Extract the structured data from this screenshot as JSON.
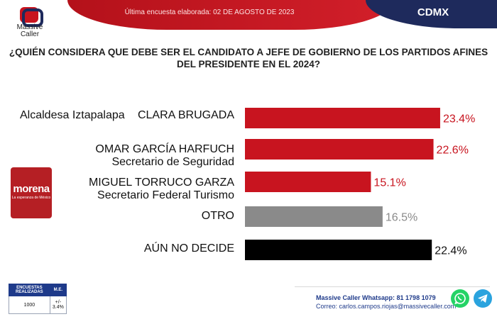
{
  "header": {
    "survey_date": "Última encuesta elaborada: 02 DE AGOSTO DE 2023",
    "region": "CDMX",
    "brand_line1": "Massive",
    "brand_line2": "Caller"
  },
  "question": "¿QUIÉN CONSIDERA QUE DEBE SER EL CANDIDATO A JEFE DE GOBIERNO DE LOS PARTIDOS AFINES DEL PRESIDENTE EN EL 2024?",
  "candidates": [
    {
      "role": "Alcaldesa Iztapalapa",
      "name": "CLARA BRUGADA"
    },
    {
      "name": "OMAR GARCÍA HARFUCH",
      "role": "Secretario de Seguridad"
    },
    {
      "name": "MIGUEL TORRUCO GARZA",
      "role": "Secretario Federal Turismo"
    },
    {
      "name": "OTRO"
    },
    {
      "name": "AÚN NO DECIDE"
    }
  ],
  "party_logo": {
    "name": "morena",
    "tagline": "La esperanza de México"
  },
  "chart_data": {
    "type": "bar",
    "orientation": "horizontal",
    "categories": [
      "CLARA BRUGADA",
      "OMAR GARCÍA HARFUCH",
      "MIGUEL TORRUCO GARZA",
      "OTRO",
      "AÚN NO DECIDE"
    ],
    "values": [
      23.4,
      22.6,
      15.1,
      16.5,
      22.4
    ],
    "value_labels": [
      "23.4%",
      "22.6%",
      "15.1%",
      "16.5%",
      "22.4%"
    ],
    "colors": [
      "#c8141f",
      "#c8141f",
      "#c8141f",
      "#8a8a8a",
      "#000000"
    ],
    "label_colors": [
      "#c8141f",
      "#c8141f",
      "#c8141f",
      "#8a8a8a",
      "#111111"
    ],
    "xlim": [
      0,
      24
    ],
    "title": "",
    "xlabel": "",
    "ylabel": "",
    "grid": false
  },
  "stats": {
    "header1": "ENCUESTAS REALIZADAS",
    "header2": "M.E.",
    "value1": "1000",
    "value2": "+/- 3.4%"
  },
  "contact": {
    "line1": "Massive Caller Whatsapp: 81 1798 1079",
    "line2": "Correo: carlos.campos.riojas@massivecaller.com"
  },
  "icons": {
    "whatsapp": "whatsapp-icon",
    "telegram": "telegram-icon"
  }
}
